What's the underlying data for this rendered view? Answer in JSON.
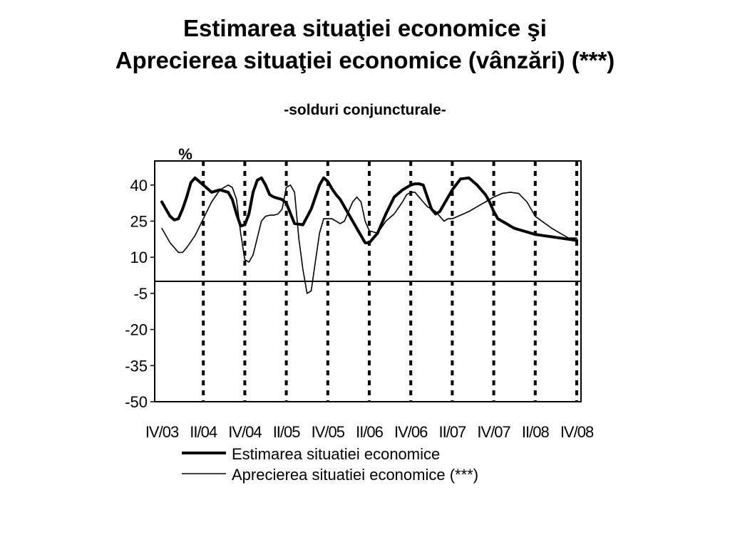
{
  "title_line1": "Estimarea situaţiei economice şi",
  "title_line2": "Aprecierea situaţiei economice (vânzări) (***)",
  "subtitle": "-solduri conjuncturale-",
  "chart_data": {
    "type": "line",
    "title": "Estimarea situaţiei economice şi Aprecierea situaţiei economice (vânzări) (***)",
    "subtitle": "-solduri conjuncturale-",
    "ylabel": "%",
    "ylim": [
      -50,
      50
    ],
    "yticks": [
      40,
      25,
      10,
      -5,
      -20,
      -35,
      -50
    ],
    "categories": [
      "IV/03",
      "II/04",
      "IV/04",
      "II/05",
      "IV/05",
      "II/06",
      "IV/06",
      "II/07",
      "IV/07",
      "II/08",
      "IV/08"
    ],
    "grid": "dashed vertical lines at each x tick",
    "legend_position": "bottom",
    "series": [
      {
        "name": "Estimarea situatiei economice",
        "style": "thick",
        "x": [
          0,
          0.1,
          0.2,
          0.3,
          0.4,
          0.5,
          0.6,
          0.7,
          0.8,
          1.0,
          1.2,
          1.4,
          1.6,
          1.7,
          1.8,
          1.9,
          2.0,
          2.1,
          2.2,
          2.3,
          2.4,
          2.5,
          2.6,
          2.7,
          2.8,
          2.9,
          3.0,
          3.2,
          3.4,
          3.6,
          3.8,
          3.9,
          4.0,
          4.1,
          4.2,
          4.3,
          4.4,
          4.5,
          4.6,
          4.7,
          4.8,
          4.9,
          5.0,
          5.2,
          5.4,
          5.6,
          5.8,
          5.9,
          6.0,
          6.1,
          6.2,
          6.3,
          6.4,
          6.5,
          6.6,
          6.7,
          6.8,
          7.0,
          7.2,
          7.4,
          7.6,
          7.8,
          7.9,
          8.0,
          8.1,
          8.2,
          8.3,
          8.4,
          8.5,
          8.6,
          8.7,
          8.8,
          8.9,
          9.0,
          9.2,
          9.4,
          9.6,
          9.8,
          10.0
        ],
        "values": [
          33,
          30,
          27,
          25.5,
          26,
          30,
          35,
          41,
          43,
          40,
          37,
          38,
          37,
          34,
          28,
          23,
          23.5,
          28,
          37,
          42,
          43,
          40,
          36,
          35,
          34.5,
          34,
          32.5,
          24,
          23.5,
          30,
          40,
          43,
          41.5,
          38.5,
          36,
          34,
          31,
          28,
          25,
          22,
          19,
          16,
          16,
          20,
          28,
          35,
          38,
          39,
          40,
          40.5,
          40.5,
          40,
          35,
          30,
          28,
          29,
          32,
          38,
          42.5,
          43,
          40,
          36,
          33,
          29,
          26,
          25,
          24,
          23,
          22,
          21.5,
          21,
          20.5,
          20,
          19.5,
          19,
          18.5,
          18,
          17.5,
          17
        ]
      },
      {
        "name": "Aprecierea situatiei economice (***)",
        "style": "thin",
        "x": [
          0,
          0.2,
          0.4,
          0.5,
          0.6,
          0.8,
          1.0,
          1.2,
          1.4,
          1.6,
          1.7,
          1.8,
          1.9,
          2.0,
          2.1,
          2.2,
          2.3,
          2.4,
          2.5,
          2.6,
          2.7,
          2.8,
          2.9,
          3.0,
          3.1,
          3.2,
          3.3,
          3.4,
          3.5,
          3.6,
          3.7,
          3.8,
          3.9,
          4.0,
          4.1,
          4.2,
          4.3,
          4.4,
          4.5,
          4.6,
          4.7,
          4.8,
          4.9,
          5.0,
          5.2,
          5.4,
          5.6,
          5.8,
          5.9,
          6.0,
          6.1,
          6.2,
          6.3,
          6.4,
          6.5,
          6.6,
          6.7,
          6.8,
          6.9,
          7.0,
          7.2,
          7.4,
          7.6,
          7.8,
          8.0,
          8.2,
          8.4,
          8.6,
          8.8,
          9.0,
          9.2,
          9.4,
          9.6,
          9.8,
          10.0
        ],
        "values": [
          22,
          16,
          12,
          12,
          14,
          19,
          26,
          33,
          38,
          40,
          39,
          34,
          20,
          9,
          8,
          11,
          18,
          25,
          27,
          27.5,
          27.5,
          28,
          30,
          39,
          40,
          37,
          18,
          5,
          -5,
          -4,
          8,
          20,
          26,
          26,
          26,
          25,
          24,
          25,
          29,
          33,
          35,
          33,
          25,
          21,
          20,
          25,
          28,
          33,
          36,
          37,
          37,
          35,
          33,
          31,
          30,
          29,
          27,
          25,
          26,
          26,
          27.5,
          29,
          31,
          33,
          35,
          36.5,
          37,
          36.5,
          33,
          27,
          24.5,
          22,
          20,
          18,
          18
        ]
      }
    ]
  }
}
